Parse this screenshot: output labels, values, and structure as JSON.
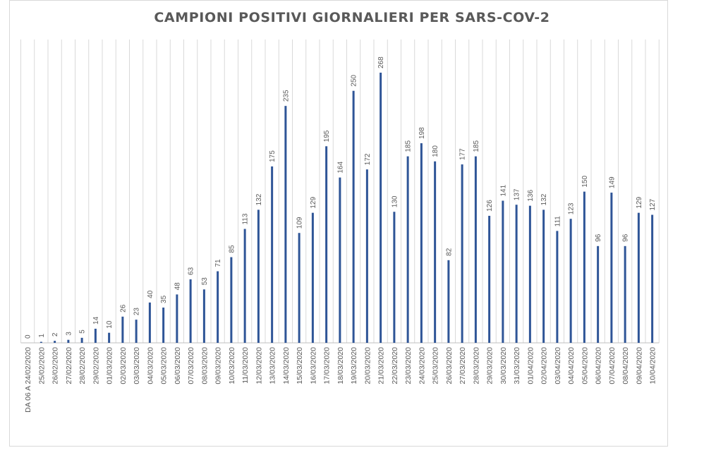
{
  "chart_data": {
    "type": "bar",
    "title": "CAMPIONI POSITIVI GIORNALIERI PER SARS-COV-2",
    "xlabel": "",
    "ylabel": "",
    "grid": "vertical",
    "legend": "none",
    "ylim": [
      0,
      280
    ],
    "bar_color": "#2f5597",
    "categories": [
      "DA 06 A 24/02/2020",
      "25/02/2020",
      "26/02/2020",
      "27/02/2020",
      "28/02/2020",
      "29/02/2020",
      "01/03/2020",
      "02/03/2020",
      "03/03/2020",
      "04/03/2020",
      "05/03/2020",
      "06/03/2020",
      "07/03/2020",
      "08/03/2020",
      "09/03/2020",
      "10/03/2020",
      "11/03/2020",
      "12/03/2020",
      "13/03/2020",
      "14/03/2020",
      "15/03/2020",
      "16/03/2020",
      "17/03/2020",
      "18/03/2020",
      "19/03/2020",
      "20/03/2020",
      "21/03/2020",
      "22/03/2020",
      "23/03/2020",
      "24/03/2020",
      "25/03/2020",
      "26/03/2020",
      "27/03/2020",
      "28/03/2020",
      "29/03/2020",
      "30/03/2020",
      "31/03/2020",
      "01/04/2020",
      "02/04/2020",
      "03/04/2020",
      "04/04/2020",
      "05/04/2020",
      "06/04/2020",
      "07/04/2020",
      "08/04/2020",
      "09/04/2020",
      "10/04/2020"
    ],
    "values": [
      0,
      1,
      2,
      3,
      5,
      14,
      10,
      26,
      23,
      40,
      35,
      48,
      63,
      53,
      71,
      85,
      113,
      132,
      175,
      235,
      109,
      129,
      195,
      164,
      250,
      172,
      268,
      130,
      185,
      198,
      180,
      82,
      177,
      185,
      126,
      141,
      137,
      136,
      132,
      111,
      123,
      150,
      96,
      149,
      96,
      129,
      127
    ]
  }
}
